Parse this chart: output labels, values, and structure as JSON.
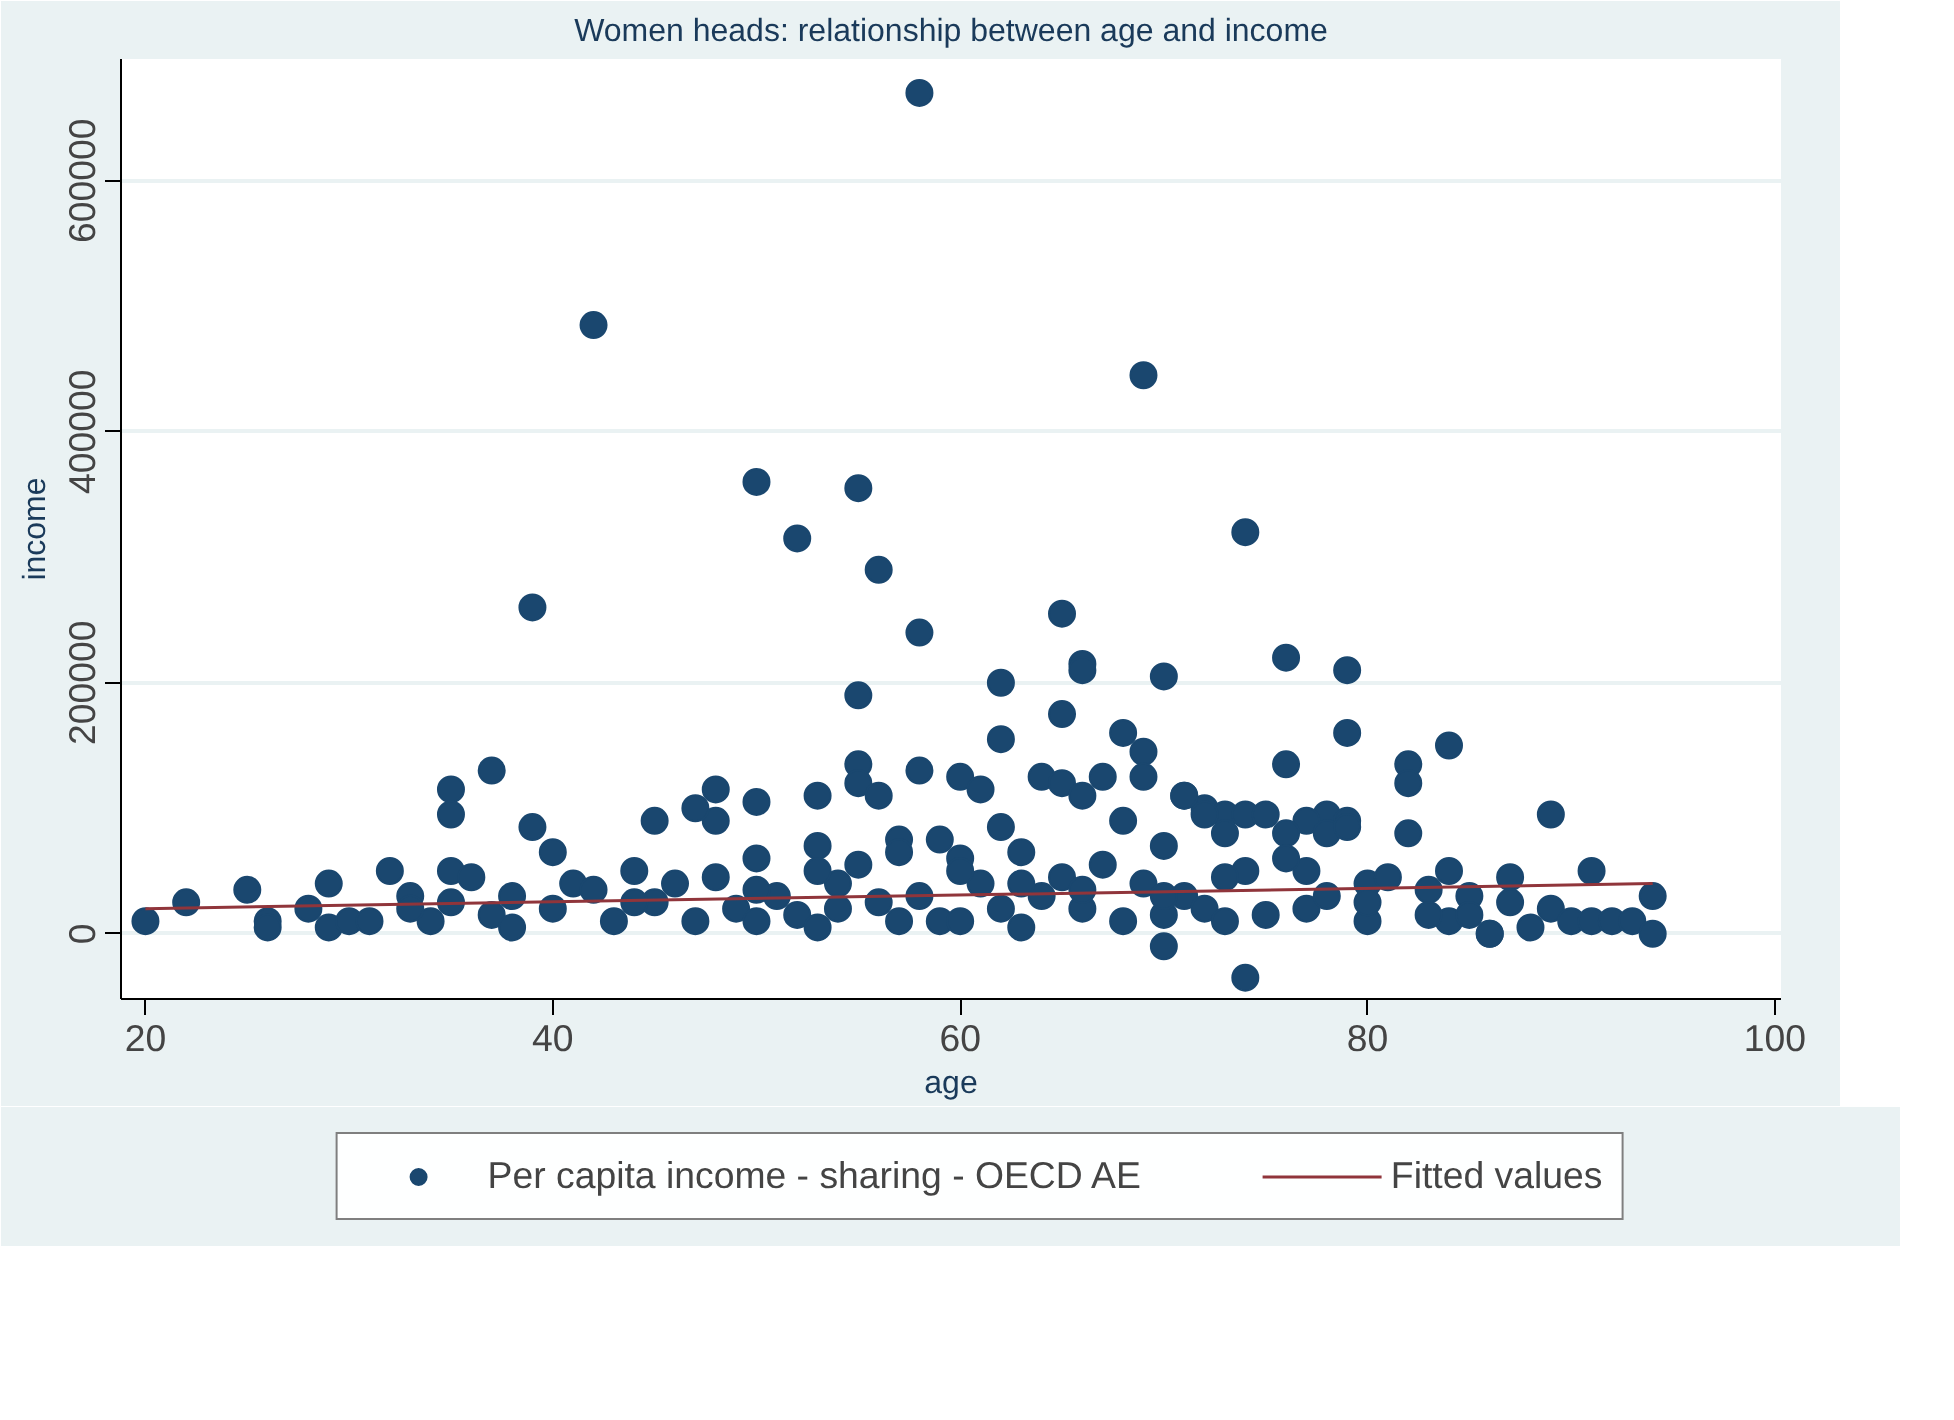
{
  "chart_data": {
    "type": "scatter",
    "title": "Women heads: relationship between age and income",
    "xlabel": "age",
    "ylabel": "income",
    "xlim": [
      18.8,
      100.3
    ],
    "ylim": [
      -52000,
      697000
    ],
    "xticks": [
      20,
      40,
      60,
      80,
      100
    ],
    "yticks": [
      0,
      200000,
      400000,
      600000
    ],
    "grid": "y",
    "legend": "bottom",
    "series": [
      {
        "name": "Per capita income - sharing - OECD AE",
        "color": "#1a476f",
        "marker": "circle",
        "x": [
          58,
          42,
          69,
          50,
          55,
          52,
          74,
          39,
          56,
          58,
          65,
          76,
          79,
          66,
          66,
          62,
          70,
          55,
          65,
          68,
          79,
          62,
          84,
          76,
          69,
          37,
          35,
          35,
          39,
          48,
          48,
          45,
          47,
          55,
          82,
          82,
          89,
          72,
          73,
          74,
          78,
          79,
          77,
          71,
          74,
          70,
          86,
          20,
          22,
          25,
          26,
          26,
          28,
          29,
          29,
          30,
          31,
          32,
          33,
          34,
          35,
          35,
          36,
          37,
          38,
          38,
          40,
          40,
          41,
          42,
          43,
          44,
          45,
          46,
          47,
          48,
          49,
          50,
          50,
          50,
          51,
          52,
          53,
          53,
          53,
          54,
          54,
          55,
          55,
          56,
          56,
          57,
          57,
          58,
          58,
          59,
          59,
          60,
          60,
          60,
          61,
          61,
          62,
          62,
          63,
          63,
          64,
          64,
          65,
          65,
          66,
          66,
          67,
          67,
          68,
          68,
          69,
          69,
          70,
          70,
          71,
          71,
          72,
          72,
          73,
          73,
          74,
          75,
          75,
          76,
          77,
          77,
          78,
          78,
          79,
          80,
          80,
          81,
          82,
          83,
          84,
          84,
          85,
          85,
          86,
          87,
          87,
          88,
          89,
          90,
          91,
          91,
          92,
          93,
          94,
          94,
          33,
          44,
          50,
          53,
          57,
          60,
          63,
          66,
          70,
          73,
          76,
          80,
          83
        ],
        "values": [
          670000,
          485000,
          445000,
          360000,
          355000,
          315000,
          320000,
          260000,
          290000,
          240000,
          255000,
          220000,
          210000,
          215000,
          210000,
          200000,
          205000,
          190000,
          175000,
          160000,
          160000,
          155000,
          150000,
          135000,
          145000,
          130000,
          115000,
          95000,
          85000,
          115000,
          90000,
          90000,
          100000,
          135000,
          135000,
          120000,
          95000,
          100000,
          95000,
          95000,
          95000,
          90000,
          90000,
          110000,
          -35000,
          -10000,
          0,
          10000,
          25000,
          35000,
          10000,
          5000,
          20000,
          40000,
          5000,
          10000,
          10000,
          50000,
          30000,
          10000,
          50000,
          25000,
          45000,
          15000,
          30000,
          5000,
          65000,
          20000,
          40000,
          35000,
          10000,
          50000,
          25000,
          40000,
          10000,
          45000,
          20000,
          105000,
          60000,
          10000,
          30000,
          15000,
          110000,
          70000,
          5000,
          40000,
          20000,
          120000,
          55000,
          110000,
          25000,
          75000,
          10000,
          130000,
          30000,
          75000,
          10000,
          125000,
          60000,
          10000,
          115000,
          40000,
          85000,
          20000,
          65000,
          5000,
          125000,
          30000,
          120000,
          45000,
          110000,
          20000,
          125000,
          55000,
          90000,
          10000,
          125000,
          40000,
          70000,
          15000,
          110000,
          30000,
          95000,
          20000,
          80000,
          10000,
          50000,
          95000,
          15000,
          80000,
          50000,
          20000,
          80000,
          30000,
          85000,
          40000,
          10000,
          45000,
          80000,
          35000,
          50000,
          10000,
          30000,
          15000,
          0,
          45000,
          25000,
          5000,
          20000,
          10000,
          50000,
          10000,
          10000,
          10000,
          30000,
          0,
          20000,
          25000,
          35000,
          50000,
          65000,
          50000,
          40000,
          35000,
          30000,
          45000,
          60000,
          25000,
          15000
        ]
      },
      {
        "name": "Fitted values",
        "color": "#90353b",
        "type": "line",
        "x": [
          20,
          94
        ],
        "values": [
          20000,
          40000
        ]
      }
    ]
  }
}
